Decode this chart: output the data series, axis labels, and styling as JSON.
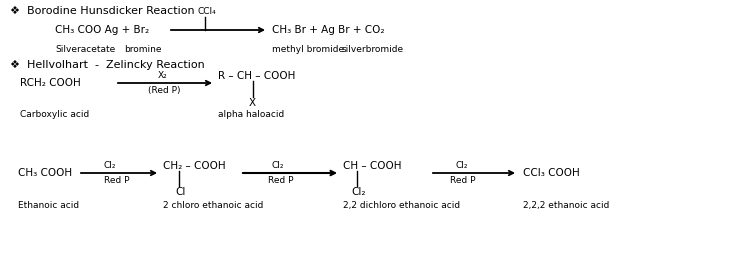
{
  "bg_color": "#ffffff",
  "fs": 7.5,
  "fs_sm": 6.5,
  "fs_t": 8.0,
  "section1_title": "❖  Borodine Hunsdicker Reaction",
  "s1_reagent_above": "CCl₄",
  "s1_lhs": "CH₃ COO Ag + Br₂",
  "s1_rhs": "CH₃ Br + Ag Br + CO₂",
  "s1_label_lhs1": "Silveracetate",
  "s1_label_lhs2": "bromine",
  "s1_label_rhs1": "methyl bromide",
  "s1_label_rhs2": "silverbromide",
  "section2_title": "❖  Hellvolhart  -  Zelincky Reaction",
  "s2_lhs": "RCH₂ COOH",
  "s2_reagent_top": "X₂",
  "s2_reagent_bot": "(Red P)",
  "s2_rhs_line1": "R – CH – COOH",
  "s2_rhs_sub": "X",
  "s2_label_lhs": "Carboxylic acid",
  "s2_label_rhs": "alpha haloacid",
  "s3_c1": "CH₃ COOH",
  "s3_c1_label": "Ethanoic acid",
  "s3_r1_top": "Cl₂",
  "s3_r1_bot": "Red P",
  "s3_c2_top": "CH₂ – COOH",
  "s3_c2_sub": "Cl",
  "s3_c2_label": "2 chloro ethanoic acid",
  "s3_r2_top": "Cl₂",
  "s3_r2_bot": "Red P",
  "s3_c3_top": "CH – COOH",
  "s3_c3_sub": "Cl₂",
  "s3_c3_label": "2,2 dichloro ethanoic acid",
  "s3_r3_top": "Cl₂",
  "s3_r3_bot": "Red P",
  "s3_c4": "CCl₃ COOH",
  "s3_c4_label": "2,2,2 ethanoic acid"
}
